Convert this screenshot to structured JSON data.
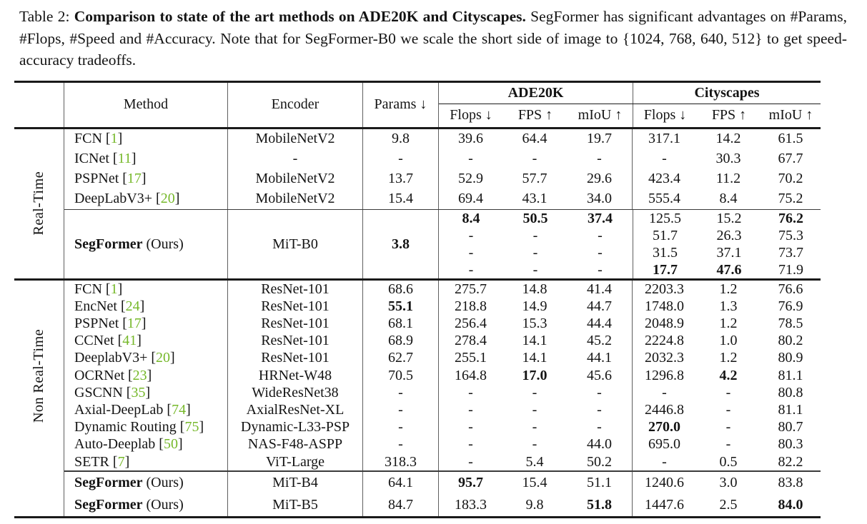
{
  "caption": {
    "prefix": "Table 2: ",
    "bold": "Comparison to state of the art methods on ADE20K and Cityscapes.",
    "rest": " SegFormer has significant advantages on #Params, #Flops, #Speed and #Accuracy. Note that for SegFormer-B0 we scale the short side of image to {1024, 768, 640, 512} to get speed-accuracy tradeoffs."
  },
  "colors": {
    "citation": "#76b82a",
    "text": "#141414"
  },
  "header": {
    "method": "Method",
    "encoder": "Encoder",
    "params": "Params ↓",
    "groups": [
      {
        "label": "ADE20K"
      },
      {
        "label": "Cityscapes"
      }
    ],
    "sub": [
      "Flops ↓",
      "FPS ↑",
      "mIoU ↑"
    ]
  },
  "table": {
    "cite_brackets": [
      "[",
      "]"
    ],
    "sections": [
      {
        "label": "Real-Time",
        "blocks": [
          {
            "type": "rows",
            "rows": [
              {
                "method": "FCN",
                "cite": "1",
                "encoder": "MobileNetV2",
                "params": "9.8",
                "vals": [
                  "39.6",
                  "64.4",
                  "19.7",
                  "317.1",
                  "14.2",
                  "61.5"
                ],
                "bold": []
              },
              {
                "method": "ICNet",
                "cite": "11",
                "encoder": "-",
                "params": "-",
                "vals": [
                  "-",
                  "-",
                  "-",
                  "-",
                  "30.3",
                  "67.7"
                ],
                "bold": []
              },
              {
                "method": "PSPNet",
                "cite": "17",
                "encoder": "MobileNetV2",
                "params": "13.7",
                "vals": [
                  "52.9",
                  "57.7",
                  "29.6",
                  "423.4",
                  "11.2",
                  "70.2"
                ],
                "bold": []
              },
              {
                "method": "DeepLabV3+",
                "cite": "20",
                "encoder": "MobileNetV2",
                "params": "15.4",
                "vals": [
                  "69.4",
                  "43.1",
                  "34.0",
                  "555.4",
                  "8.4",
                  "75.2"
                ],
                "bold": []
              }
            ]
          },
          {
            "type": "multirow",
            "method": "SegFormer",
            "method_bold": true,
            "suffix": "(Ours)",
            "encoder": "MiT-B0",
            "params": "3.8",
            "params_bold": true,
            "rows": [
              {
                "vals": [
                  "8.4",
                  "50.5",
                  "37.4",
                  "125.5",
                  "15.2",
                  "76.2"
                ],
                "bold": [
                  0,
                  1,
                  2,
                  5
                ]
              },
              {
                "vals": [
                  "-",
                  "-",
                  "-",
                  "51.7",
                  "26.3",
                  "75.3"
                ],
                "bold": []
              },
              {
                "vals": [
                  "-",
                  "-",
                  "-",
                  "31.5",
                  "37.1",
                  "73.7"
                ],
                "bold": []
              },
              {
                "vals": [
                  "-",
                  "-",
                  "-",
                  "17.7",
                  "47.6",
                  "71.9"
                ],
                "bold": [
                  3,
                  4
                ]
              }
            ]
          }
        ]
      },
      {
        "label": "Non Real-Time",
        "blocks": [
          {
            "type": "rows",
            "rows": [
              {
                "method": "FCN",
                "cite": "1",
                "encoder": "ResNet-101",
                "params": "68.6",
                "vals": [
                  "275.7",
                  "14.8",
                  "41.4",
                  "2203.3",
                  "1.2",
                  "76.6"
                ],
                "bold": []
              },
              {
                "method": "EncNet",
                "cite": "24",
                "encoder": "ResNet-101",
                "params": "55.1",
                "params_bold": true,
                "vals": [
                  "218.8",
                  "14.9",
                  "44.7",
                  "1748.0",
                  "1.3",
                  "76.9"
                ],
                "bold": []
              },
              {
                "method": "PSPNet",
                "cite": "17",
                "encoder": "ResNet-101",
                "params": "68.1",
                "vals": [
                  "256.4",
                  "15.3",
                  "44.4",
                  "2048.9",
                  "1.2",
                  "78.5"
                ],
                "bold": []
              },
              {
                "method": "CCNet",
                "cite": "41",
                "encoder": "ResNet-101",
                "params": "68.9",
                "vals": [
                  "278.4",
                  "14.1",
                  "45.2",
                  "2224.8",
                  "1.0",
                  "80.2"
                ],
                "bold": []
              },
              {
                "method": "DeeplabV3+",
                "cite": "20",
                "encoder": "ResNet-101",
                "params": "62.7",
                "vals": [
                  "255.1",
                  "14.1",
                  "44.1",
                  "2032.3",
                  "1.2",
                  "80.9"
                ],
                "bold": []
              },
              {
                "method": "OCRNet",
                "cite": "23",
                "encoder": "HRNet-W48",
                "params": "70.5",
                "vals": [
                  "164.8",
                  "17.0",
                  "45.6",
                  "1296.8",
                  "4.2",
                  "81.1"
                ],
                "bold": [
                  1,
                  4
                ]
              },
              {
                "method": "GSCNN",
                "cite": "35",
                "encoder": "WideResNet38",
                "params": "-",
                "vals": [
                  "-",
                  "-",
                  "-",
                  "-",
                  "-",
                  "80.8"
                ],
                "bold": []
              },
              {
                "method": "Axial-DeepLab",
                "cite": "74",
                "encoder": "AxialResNet-XL",
                "params": "-",
                "vals": [
                  "-",
                  "-",
                  "-",
                  "2446.8",
                  "-",
                  "81.1"
                ],
                "bold": []
              },
              {
                "method": "Dynamic Routing",
                "cite": "75",
                "encoder": "Dynamic-L33-PSP",
                "params": "-",
                "vals": [
                  "-",
                  "-",
                  "-",
                  "270.0",
                  "-",
                  "80.7"
                ],
                "bold": [
                  3
                ]
              },
              {
                "method": "Auto-Deeplab",
                "cite": "50",
                "encoder": "NAS-F48-ASPP",
                "params": "-",
                "vals": [
                  "-",
                  "-",
                  "44.0",
                  "695.0",
                  "-",
                  "80.3"
                ],
                "bold": []
              },
              {
                "method": "SETR",
                "cite": "7",
                "encoder": "ViT-Large",
                "params": "318.3",
                "vals": [
                  "-",
                  "5.4",
                  "50.2",
                  "-",
                  "0.5",
                  "82.2"
                ],
                "bold": []
              }
            ]
          },
          {
            "type": "rows",
            "rows": [
              {
                "method": "SegFormer",
                "method_bold": true,
                "suffix": "(Ours)",
                "encoder": "MiT-B4",
                "params": "64.1",
                "vals": [
                  "95.7",
                  "15.4",
                  "51.1",
                  "1240.6",
                  "3.0",
                  "83.8"
                ],
                "bold": [
                  0
                ]
              },
              {
                "method": "SegFormer",
                "method_bold": true,
                "suffix": "(Ours)",
                "encoder": "MiT-B5",
                "params": "84.7",
                "vals": [
                  "183.3",
                  "9.8",
                  "51.8",
                  "1447.6",
                  "2.5",
                  "84.0"
                ],
                "bold": [
                  2,
                  5
                ]
              }
            ]
          }
        ]
      }
    ]
  }
}
